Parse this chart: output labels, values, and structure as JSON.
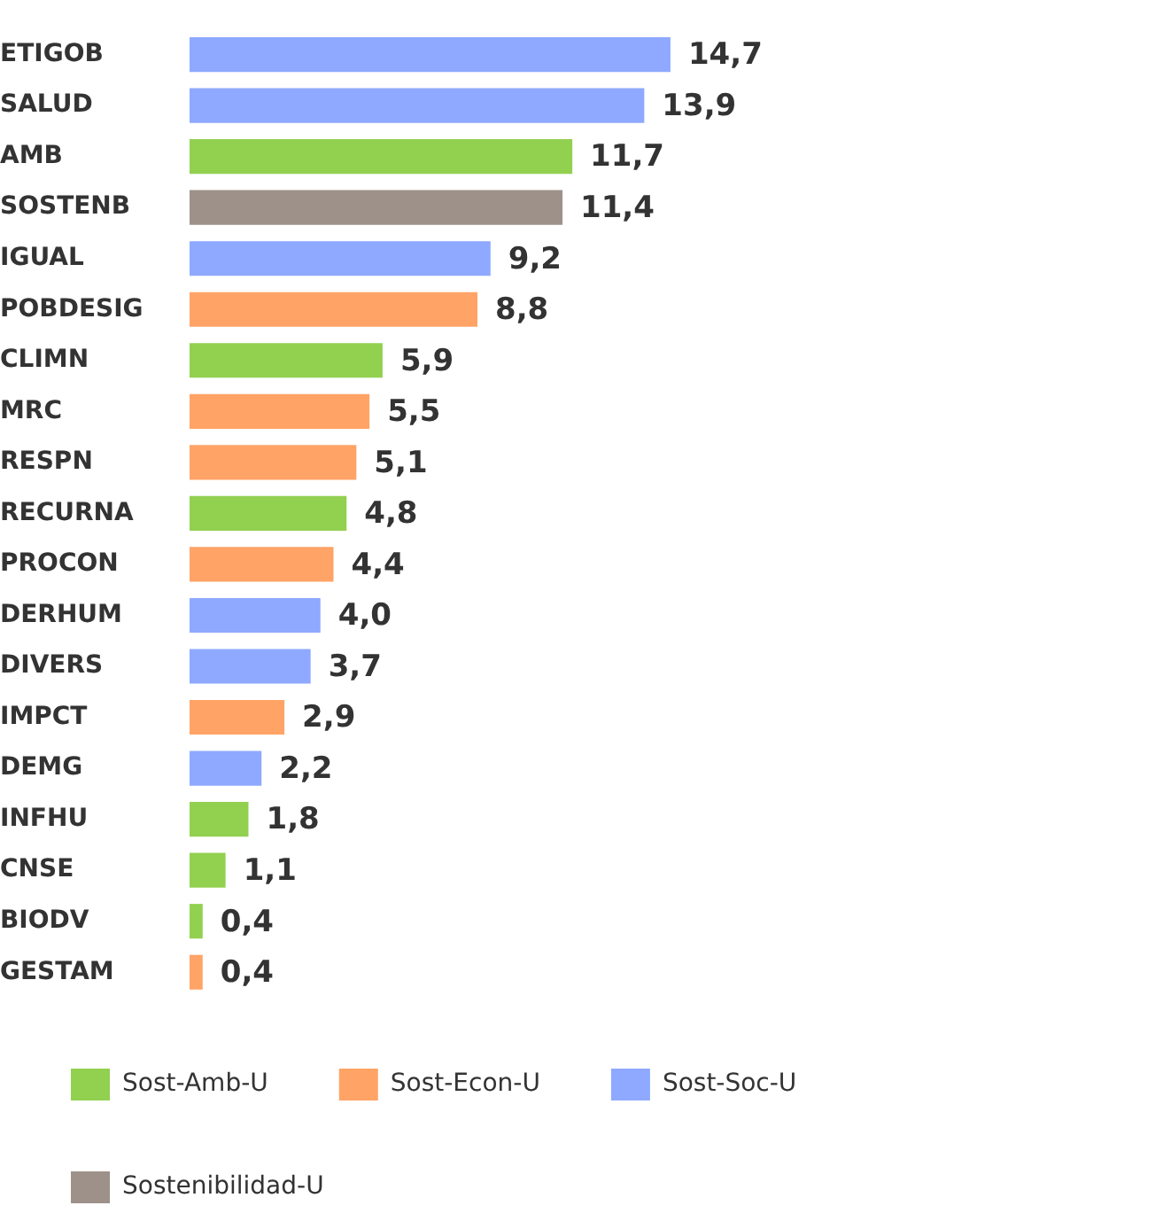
{
  "chart_data": {
    "type": "bar",
    "orientation": "horizontal",
    "legend": "bottom",
    "grid": false,
    "categories": [
      "ETIGOB",
      "SALUD",
      "AMB",
      "SOSTENB",
      "IGUAL",
      "POBDESIG",
      "CLIMN",
      "MRC",
      "RESPN",
      "RECURNA",
      "PROCON",
      "DERHUM",
      "DIVERS",
      "IMPCT",
      "DEMG",
      "INFHU",
      "CNSE",
      "BIODV",
      "GESTAM"
    ],
    "series": [
      {
        "name": "Sost-Amb-U",
        "color": "#92d050",
        "values": [
          null,
          null,
          11.7,
          null,
          null,
          null,
          5.9,
          null,
          null,
          4.8,
          null,
          null,
          null,
          null,
          null,
          1.8,
          1.1,
          0.4,
          null
        ],
        "value_labels": [
          null,
          null,
          "11,7",
          null,
          null,
          null,
          "5,9",
          null,
          null,
          "4,8",
          null,
          null,
          null,
          null,
          null,
          "1,8",
          "1,1",
          "0,4",
          null
        ]
      },
      {
        "name": "Sost-Econ-U",
        "color": "#ffa366",
        "values": [
          null,
          null,
          null,
          null,
          null,
          8.8,
          null,
          5.5,
          5.1,
          null,
          4.4,
          null,
          null,
          2.9,
          null,
          null,
          null,
          null,
          0.4
        ],
        "value_labels": [
          null,
          null,
          null,
          null,
          null,
          "8,8",
          null,
          "5,5",
          "5,1",
          null,
          "4,4",
          null,
          null,
          "2,9",
          null,
          null,
          null,
          null,
          "0,4"
        ]
      },
      {
        "name": "Sost-Soc-U",
        "color": "#8ea9ff",
        "values": [
          14.7,
          13.9,
          null,
          null,
          9.2,
          null,
          null,
          null,
          null,
          null,
          null,
          4.0,
          3.7,
          null,
          2.2,
          null,
          null,
          null,
          null
        ],
        "value_labels": [
          "14,7",
          "13,9",
          null,
          null,
          "9,2",
          null,
          null,
          null,
          null,
          null,
          null,
          "4,0",
          "3,7",
          null,
          "2,2",
          null,
          null,
          null,
          null
        ]
      },
      {
        "name": "Sostenibilidad-U",
        "color": "#9e9189",
        "values": [
          null,
          null,
          null,
          11.4,
          null,
          null,
          null,
          null,
          null,
          null,
          null,
          null,
          null,
          null,
          null,
          null,
          null,
          null,
          null
        ],
        "value_labels": [
          null,
          null,
          null,
          "11,4",
          null,
          null,
          null,
          null,
          null,
          null,
          null,
          null,
          null,
          null,
          null,
          null,
          null,
          null,
          null
        ]
      }
    ]
  }
}
